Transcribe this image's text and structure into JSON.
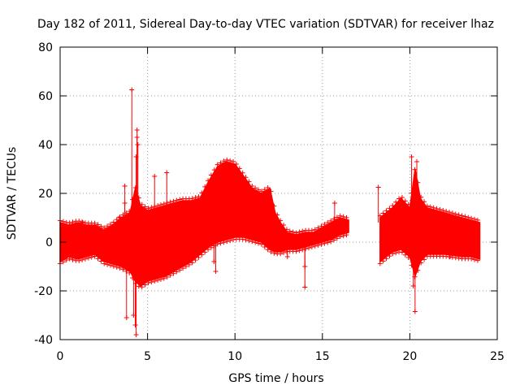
{
  "chart_data": {
    "type": "scatter",
    "title": "Day 182 of 2011, Sidereal Day-to-day VTEC variation (SDTVAR) for receiver lhaz",
    "xlabel": "GPS time / hours",
    "ylabel": "SDTVAR / TECUs",
    "xlim": [
      0,
      25
    ],
    "ylim": [
      -40,
      80
    ],
    "xticks": [
      0,
      5,
      10,
      15,
      20,
      25
    ],
    "yticks": [
      -40,
      -20,
      0,
      20,
      40,
      60,
      80
    ],
    "grid": true,
    "series_color": "#ff0000",
    "series": [
      {
        "name": "SDTVAR",
        "marker": "plus",
        "envelope": [
          {
            "x": 0.0,
            "lo": -8,
            "hi": 8
          },
          {
            "x": 0.5,
            "lo": -6,
            "hi": 7
          },
          {
            "x": 1.0,
            "lo": -7,
            "hi": 8
          },
          {
            "x": 1.5,
            "lo": -6,
            "hi": 7
          },
          {
            "x": 2.0,
            "lo": -5,
            "hi": 7
          },
          {
            "x": 2.5,
            "lo": -8,
            "hi": 5
          },
          {
            "x": 3.0,
            "lo": -9,
            "hi": 7
          },
          {
            "x": 3.5,
            "lo": -10,
            "hi": 10
          },
          {
            "x": 4.0,
            "lo": -12,
            "hi": 12
          },
          {
            "x": 4.3,
            "lo": -16,
            "hi": 22
          },
          {
            "x": 4.6,
            "lo": -18,
            "hi": 15
          },
          {
            "x": 5.0,
            "lo": -16,
            "hi": 13
          },
          {
            "x": 6.0,
            "lo": -14,
            "hi": 15
          },
          {
            "x": 7.0,
            "lo": -10,
            "hi": 17
          },
          {
            "x": 7.5,
            "lo": -8,
            "hi": 17
          },
          {
            "x": 8.0,
            "lo": -5,
            "hi": 18
          },
          {
            "x": 8.5,
            "lo": -2,
            "hi": 25
          },
          {
            "x": 9.0,
            "lo": 0,
            "hi": 31
          },
          {
            "x": 9.5,
            "lo": 1,
            "hi": 33
          },
          {
            "x": 10.0,
            "lo": 2,
            "hi": 32
          },
          {
            "x": 10.5,
            "lo": 2,
            "hi": 27
          },
          {
            "x": 11.0,
            "lo": 1,
            "hi": 22
          },
          {
            "x": 11.5,
            "lo": 0,
            "hi": 20
          },
          {
            "x": 12.0,
            "lo": -3,
            "hi": 22
          },
          {
            "x": 12.3,
            "lo": -4,
            "hi": 12
          },
          {
            "x": 12.6,
            "lo": -4,
            "hi": 8
          },
          {
            "x": 13.0,
            "lo": -3,
            "hi": 4
          },
          {
            "x": 13.5,
            "lo": -3,
            "hi": 3
          },
          {
            "x": 14.0,
            "lo": -2,
            "hi": 4
          },
          {
            "x": 14.5,
            "lo": -1,
            "hi": 4
          },
          {
            "x": 15.0,
            "lo": 0,
            "hi": 6
          },
          {
            "x": 15.5,
            "lo": 1,
            "hi": 8
          },
          {
            "x": 16.0,
            "lo": 3,
            "hi": 10
          },
          {
            "x": 16.5,
            "lo": 4,
            "hi": 9
          },
          {
            "x": 18.3,
            "lo": -8,
            "hi": 10
          },
          {
            "x": 19.0,
            "lo": -4,
            "hi": 14
          },
          {
            "x": 19.5,
            "lo": -3,
            "hi": 18
          },
          {
            "x": 20.0,
            "lo": -6,
            "hi": 14
          },
          {
            "x": 20.3,
            "lo": -14,
            "hi": 30
          },
          {
            "x": 20.6,
            "lo": -8,
            "hi": 18
          },
          {
            "x": 21.0,
            "lo": -5,
            "hi": 14
          },
          {
            "x": 22.0,
            "lo": -5,
            "hi": 12
          },
          {
            "x": 23.0,
            "lo": -6,
            "hi": 10
          },
          {
            "x": 23.5,
            "lo": -6,
            "hi": 9
          },
          {
            "x": 24.0,
            "lo": -7,
            "hi": 8
          }
        ],
        "outliers": [
          {
            "x": 4.1,
            "y": 62.5
          },
          {
            "x": 4.4,
            "y": 46
          },
          {
            "x": 4.4,
            "y": 43
          },
          {
            "x": 4.45,
            "y": 40
          },
          {
            "x": 4.35,
            "y": 35
          },
          {
            "x": 4.35,
            "y": -38
          },
          {
            "x": 4.3,
            "y": -34
          },
          {
            "x": 4.2,
            "y": -30
          },
          {
            "x": 3.8,
            "y": -31
          },
          {
            "x": 3.7,
            "y": 23
          },
          {
            "x": 3.7,
            "y": 16
          },
          {
            "x": 3.4,
            "y": 10
          },
          {
            "x": 5.4,
            "y": 27
          },
          {
            "x": 6.1,
            "y": 28.5
          },
          {
            "x": 1.3,
            "y": 8
          },
          {
            "x": 8.8,
            "y": -8
          },
          {
            "x": 8.9,
            "y": -12
          },
          {
            "x": 14.0,
            "y": -10
          },
          {
            "x": 14.0,
            "y": -18.5
          },
          {
            "x": 13.0,
            "y": -6
          },
          {
            "x": 15.7,
            "y": 16
          },
          {
            "x": 18.2,
            "y": 22.5
          },
          {
            "x": 20.1,
            "y": 35
          },
          {
            "x": 20.4,
            "y": 33
          },
          {
            "x": 20.3,
            "y": -28.5
          },
          {
            "x": 20.2,
            "y": -18
          },
          {
            "x": 22.3,
            "y": -6
          }
        ]
      }
    ]
  }
}
